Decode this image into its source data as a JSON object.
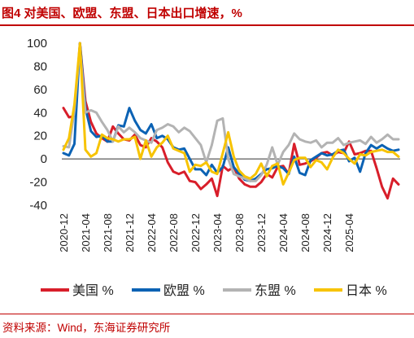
{
  "title": "图4  对美国、欧盟、东盟、日本出口增速，%",
  "source": "资料来源：Wind，东海证券研究所",
  "chart_data": {
    "type": "line",
    "title": "图4  对美国、欧盟、东盟、日本出口增速，%",
    "xlabel": "",
    "ylabel": "",
    "ylim": [
      -40,
      100
    ],
    "yticks": [
      -40,
      -20,
      0,
      20,
      40,
      60,
      80,
      100
    ],
    "grid": false,
    "legend_position": "bottom",
    "xticks": [
      {
        "index": 0,
        "label": "2020-12"
      },
      {
        "index": 4,
        "label": "2021-04"
      },
      {
        "index": 8,
        "label": "2021-08"
      },
      {
        "index": 12,
        "label": "2021-12"
      },
      {
        "index": 16,
        "label": "2022-04"
      },
      {
        "index": 20,
        "label": "2022-08"
      },
      {
        "index": 24,
        "label": "2022-12"
      },
      {
        "index": 28,
        "label": "2023-04"
      },
      {
        "index": 32,
        "label": "2023-08"
      },
      {
        "index": 36,
        "label": "2023-12"
      },
      {
        "index": 40,
        "label": "2024-04"
      },
      {
        "index": 44,
        "label": "2024-08"
      },
      {
        "index": 48,
        "label": "2024-12"
      },
      {
        "index": 52,
        "label": "2025-04"
      }
    ],
    "x_start": "2020-12",
    "series": [
      {
        "name": "美国 %",
        "color": "#d81e2a",
        "values": [
          44,
          36,
          37,
          100,
          50,
          32,
          22,
          18,
          15,
          28,
          22,
          17,
          16,
          21,
          12,
          10,
          18,
          15,
          10,
          -3,
          -11,
          -13,
          -11,
          -19,
          -20,
          -26,
          -22,
          -17,
          -32,
          -6,
          -10,
          -7,
          -17,
          -22,
          -24,
          -24,
          -20,
          -13,
          -16,
          -7,
          -6,
          -13,
          13,
          -5,
          -4,
          -2,
          1,
          5,
          6,
          3,
          6,
          5,
          15,
          4,
          5,
          7,
          7,
          -8,
          -24,
          -34,
          -17,
          -22
        ]
      },
      {
        "name": "欧盟 %",
        "color": "#0b62b4",
        "values": [
          5,
          3,
          13,
          100,
          44,
          24,
          19,
          20,
          15,
          15,
          29,
          28,
          44,
          33,
          25,
          22,
          30,
          18,
          20,
          17,
          10,
          8,
          9,
          0,
          -9,
          -9,
          -14,
          -5,
          -12,
          -7,
          10,
          -7,
          -13,
          -18,
          -19,
          -17,
          -13,
          -9,
          -8,
          -6,
          -8,
          -13,
          2,
          -12,
          -14,
          -1,
          2,
          5,
          3,
          4,
          7,
          8,
          -2,
          1,
          -11,
          5,
          12,
          9,
          12,
          9,
          7,
          8
        ]
      },
      {
        "name": "东盟 %",
        "color": "#b3b3b3",
        "values": [
          11,
          10,
          42,
          96,
          40,
          42,
          40,
          32,
          25,
          15,
          28,
          23,
          27,
          23,
          18,
          16,
          14,
          25,
          27,
          30,
          28,
          23,
          27,
          24,
          18,
          12,
          -3,
          12,
          33,
          35,
          0,
          -13,
          -15,
          -17,
          -19,
          -19,
          -14,
          -5,
          10,
          -5,
          6,
          12,
          22,
          17,
          15,
          14,
          16,
          10,
          14,
          14,
          18,
          12,
          14,
          15,
          16,
          13,
          19,
          14,
          17,
          21,
          17,
          17
        ]
      },
      {
        "name": "日本 %",
        "color": "#f7c300",
        "values": [
          8,
          18,
          47,
          100,
          8,
          2,
          5,
          21,
          18,
          17,
          15,
          17,
          17,
          19,
          0,
          16,
          2,
          10,
          14,
          20,
          9,
          7,
          5,
          -11,
          -5,
          -6,
          -3,
          -11,
          -13,
          5,
          23,
          2,
          -10,
          -15,
          -17,
          -13,
          -4,
          -15,
          -6,
          -4,
          -22,
          -12,
          -1,
          1,
          1,
          -7,
          -1,
          -3,
          -9,
          1,
          8,
          5,
          0,
          -4,
          4,
          3,
          6,
          7,
          8,
          6,
          6,
          2
        ]
      }
    ]
  }
}
